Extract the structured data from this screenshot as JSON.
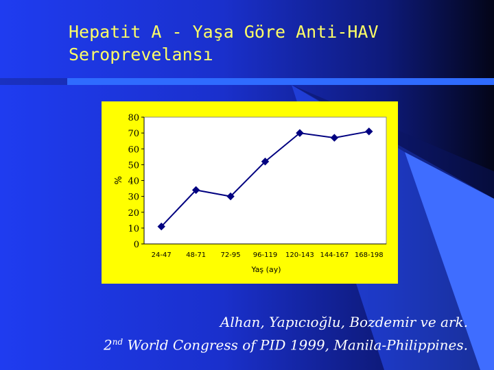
{
  "slide": {
    "title": "Hepatit A - Yaşa Göre Anti-HAV\nSeroprevelansı",
    "citation_line1": "Alhan, Yapıcıoğlu, Bozdemir ve ark.",
    "citation_line2_prefix": "2",
    "citation_line2_sup": "nd",
    "citation_line2_rest": " World Congress of PID 1999, Manila-Philippines."
  },
  "colors": {
    "chart_background": "#ffff00",
    "series_color": "#000080",
    "title_color": "#ffff66"
  },
  "chart_data": {
    "type": "line",
    "categories": [
      "24-47",
      "48-71",
      "72-95",
      "96-119",
      "120-143",
      "144-167",
      "168-198"
    ],
    "series": [
      {
        "values": [
          11,
          34,
          30,
          52,
          70,
          67,
          71
        ]
      }
    ],
    "title": "",
    "xlabel": "Yaş (ay)",
    "ylabel": "%",
    "ylim": [
      0,
      80
    ],
    "yticks": [
      0,
      10,
      20,
      30,
      40,
      50,
      60,
      70,
      80
    ],
    "grid": false,
    "legend": "none",
    "marker": "diamond"
  }
}
